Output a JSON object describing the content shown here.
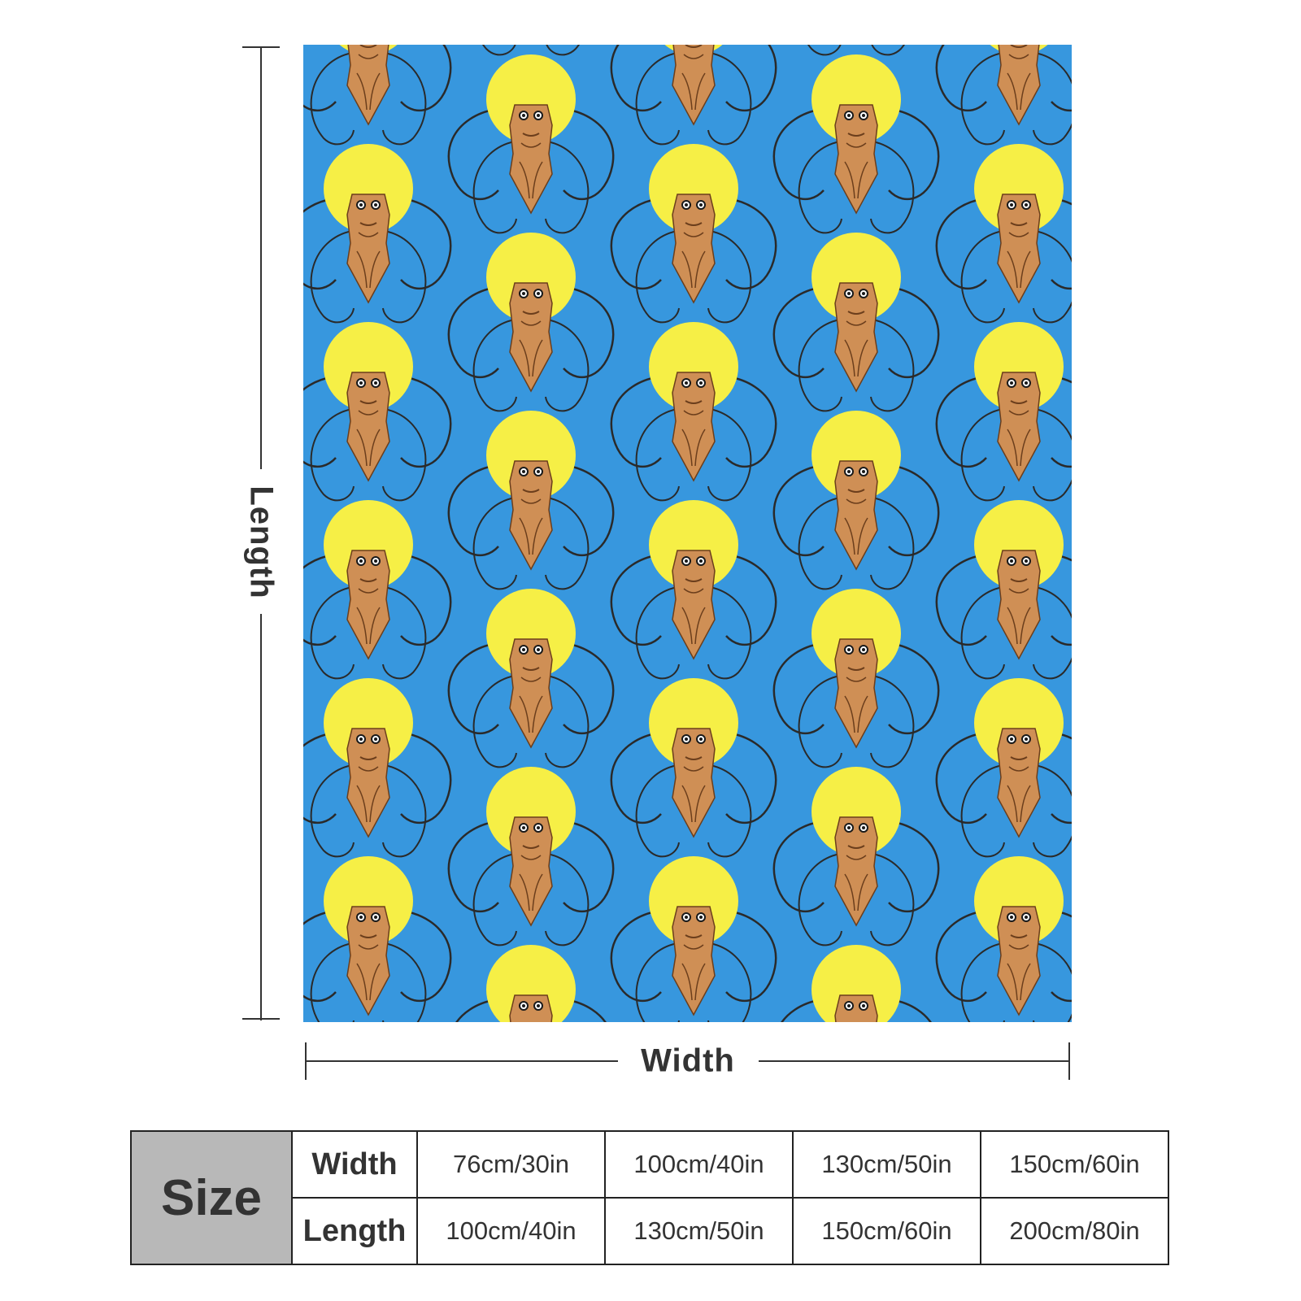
{
  "product_image": {
    "pattern": "cartoon figure with large yellow afro on blue background, tiled",
    "colors": {
      "background": "#3797de",
      "afro": "#f6ef46",
      "skin": "#cf8f55",
      "outline": "#2a2a2a"
    }
  },
  "dimensions": {
    "length_label": "Length",
    "width_label": "Width"
  },
  "size_table": {
    "header": "Size",
    "rows": [
      {
        "label": "Width",
        "values": [
          "76cm/30in",
          "100cm/40in",
          "130cm/50in",
          "150cm/60in"
        ]
      },
      {
        "label": "Length",
        "values": [
          "100cm/40in",
          "130cm/50in",
          "150cm/60in",
          "200cm/80in"
        ]
      }
    ]
  }
}
